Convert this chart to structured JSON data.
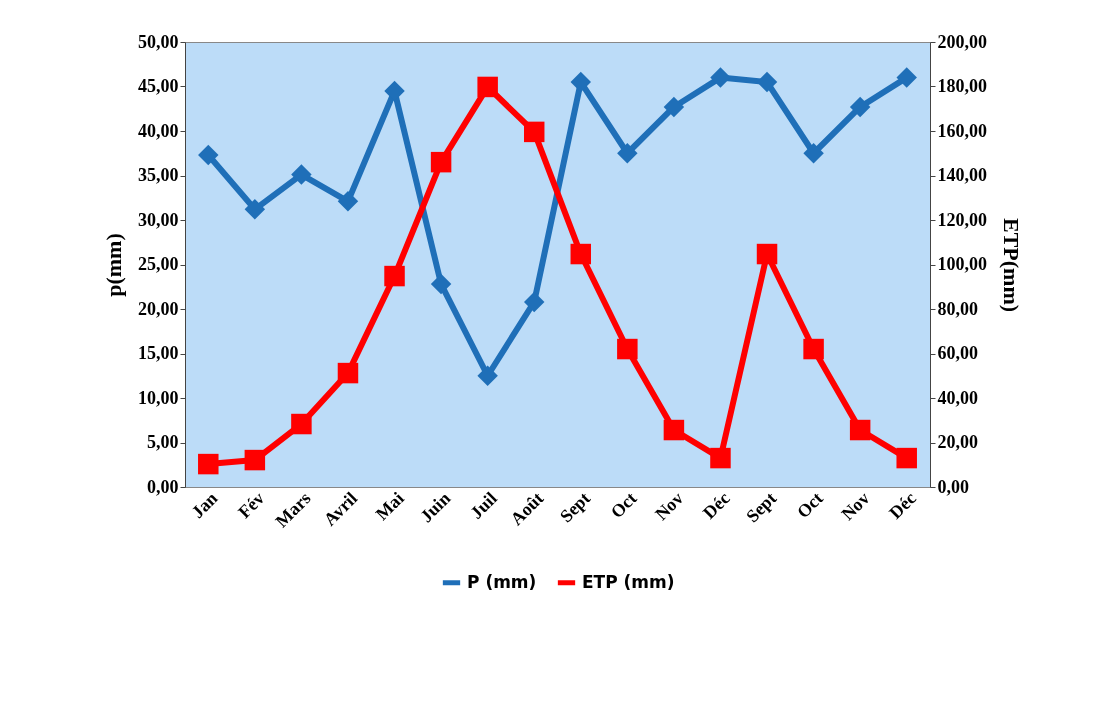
{
  "chart_data": {
    "type": "line",
    "categories": [
      "Jan",
      "Fév",
      "Mars",
      "Avril",
      "Mai",
      "Juin",
      "Juil",
      "Août",
      "Sept",
      "Oct",
      "Nov",
      "Déc",
      "Sept",
      "Oct",
      "Nov",
      "Déc"
    ],
    "ylabel": "p(mm)",
    "y2label": "ETP(mm)",
    "ylim": [
      0,
      50
    ],
    "yticks": [
      {
        "value": 0,
        "label": "0,00"
      },
      {
        "value": 5,
        "label": "5,00"
      },
      {
        "value": 10,
        "label": "10,00"
      },
      {
        "value": 15,
        "label": "15,00"
      },
      {
        "value": 20,
        "label": "20,00"
      },
      {
        "value": 25,
        "label": "25,00"
      },
      {
        "value": 30,
        "label": "30,00"
      },
      {
        "value": 35,
        "label": "35,00"
      },
      {
        "value": 40,
        "label": "40,00"
      },
      {
        "value": 45,
        "label": "45,00"
      },
      {
        "value": 50,
        "label": "50,00"
      }
    ],
    "y2lim": [
      0,
      200
    ],
    "y2ticks": [
      {
        "value": 0,
        "label": "0,00"
      },
      {
        "value": 20,
        "label": "20,00"
      },
      {
        "value": 40,
        "label": "40,00"
      },
      {
        "value": 60,
        "label": "60,00"
      },
      {
        "value": 80,
        "label": "80,00"
      },
      {
        "value": 100,
        "label": "100,00"
      },
      {
        "value": 120,
        "label": "120,00"
      },
      {
        "value": 140,
        "label": "140,00"
      },
      {
        "value": 160,
        "label": "160,00"
      },
      {
        "value": 180,
        "label": "180,00"
      },
      {
        "value": 200,
        "label": "200,00"
      }
    ],
    "legend": "bottom",
    "series": [
      {
        "name": "P (mm)",
        "color": "#1f6fb8",
        "marker": "diamond",
        "values": [
          37.3,
          31.2,
          35.1,
          32.1,
          44.5,
          22.8,
          12.5,
          20.8,
          45.5,
          37.5,
          42.7,
          46.0,
          45.5,
          37.5,
          42.7,
          46.0
        ]
      },
      {
        "name": "ETP (mm)",
        "color": "#ff0000",
        "marker": "square",
        "axis": "y2",
        "values": [
          10.3,
          12.1,
          28.3,
          51.2,
          94.8,
          146,
          179.8,
          159.6,
          104.7,
          62,
          25.6,
          13,
          104.7,
          62,
          25.6,
          13
        ]
      }
    ]
  }
}
